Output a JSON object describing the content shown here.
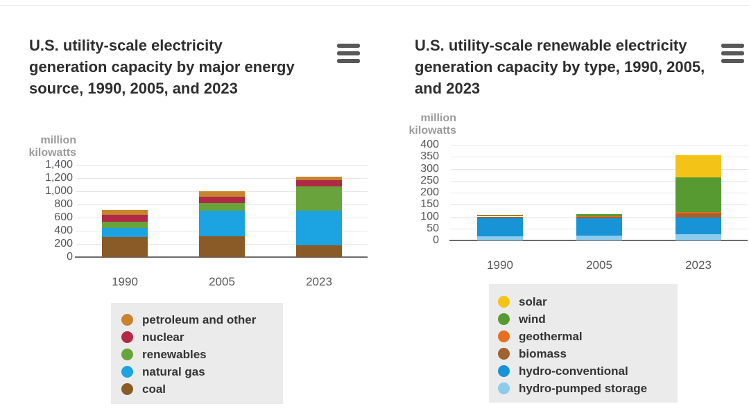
{
  "page": {
    "background": "#ffffff",
    "menu_icon": "hamburger-export-menu"
  },
  "chart_data": [
    {
      "type": "bar",
      "stacked": true,
      "title": "U.S. utility-scale electricity generation capacity by major energy source, 1990, 2005, and 2023",
      "ylabel": "million kilowatts",
      "xlabel": "",
      "categories": [
        "1990",
        "2005",
        "2023"
      ],
      "series": [
        {
          "name": "petroleum and other",
          "color": "#C8832E",
          "values": [
            80,
            85,
            60
          ]
        },
        {
          "name": "nuclear",
          "color": "#B02A46",
          "values": [
            105,
            95,
            95
          ]
        },
        {
          "name": "renewables",
          "color": "#69A33C",
          "values": [
            90,
            115,
            360
          ]
        },
        {
          "name": "natural gas",
          "color": "#1BA3E2",
          "values": [
            140,
            390,
            530
          ]
        },
        {
          "name": "coal",
          "color": "#8A5B26",
          "values": [
            305,
            315,
            180
          ]
        }
      ],
      "ylim": [
        0,
        1400
      ],
      "yticks": [
        0,
        200,
        400,
        600,
        800,
        1000,
        1200,
        1400
      ],
      "ytick_labels": [
        "0",
        "200",
        "400",
        "600",
        "800",
        "1,000",
        "1,200",
        "1,400"
      ],
      "grid": true,
      "legend_position": "bottom"
    },
    {
      "type": "bar",
      "stacked": true,
      "title": "U.S. utility-scale renewable electricity generation capacity by type, 1990, 2005, and 2023",
      "ylabel": "million kilowatts",
      "xlabel": "",
      "categories": [
        "1990",
        "2005",
        "2023"
      ],
      "series": [
        {
          "name": "solar",
          "color": "#F4C317",
          "values": [
            0,
            0,
            94
          ]
        },
        {
          "name": "wind",
          "color": "#579A32",
          "values": [
            2,
            9,
            145
          ]
        },
        {
          "name": "geothermal",
          "color": "#E56F1E",
          "values": [
            5,
            3,
            6
          ]
        },
        {
          "name": "biomass",
          "color": "#A2612F",
          "values": [
            7,
            5,
            15
          ]
        },
        {
          "name": "hydro-conventional",
          "color": "#1793D6",
          "values": [
            75,
            74,
            72
          ]
        },
        {
          "name": "hydro-pumped storage",
          "color": "#8CCBEB",
          "values": [
            18,
            20,
            25
          ]
        }
      ],
      "ylim": [
        0,
        400
      ],
      "yticks": [
        0,
        50,
        100,
        150,
        200,
        250,
        300,
        350,
        400
      ],
      "ytick_labels": [
        "0",
        "50",
        "100",
        "150",
        "200",
        "250",
        "300",
        "350",
        "400"
      ],
      "grid": true,
      "legend_position": "bottom"
    }
  ]
}
